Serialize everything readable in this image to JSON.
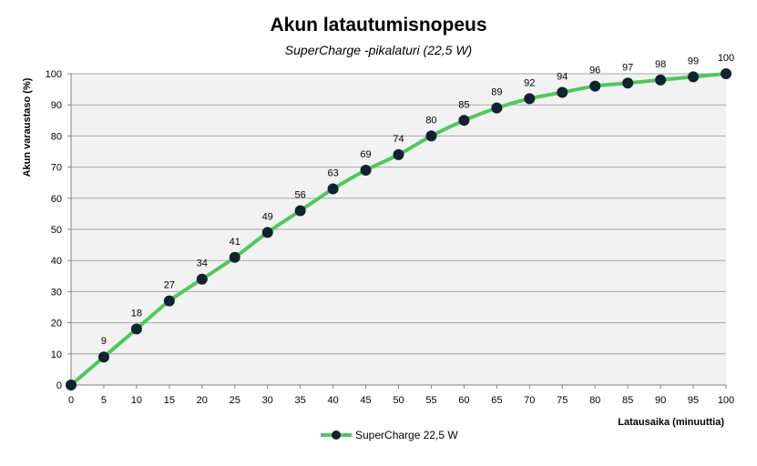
{
  "chart_data": {
    "type": "line",
    "title": "Akun latautumisnopeus",
    "subtitle": "SuperCharge  -pikalaturi  (22,5 W)",
    "xlabel": "Latausaika  (minuuttia)",
    "ylabel": "Akun  varaustaso   (%)",
    "xlim": [
      0,
      100
    ],
    "ylim": [
      0,
      100
    ],
    "x_ticks": [
      0,
      5,
      10,
      15,
      20,
      25,
      30,
      35,
      40,
      45,
      50,
      55,
      60,
      65,
      70,
      75,
      80,
      85,
      90,
      95,
      100
    ],
    "y_ticks": [
      0,
      10,
      20,
      30,
      40,
      50,
      60,
      70,
      80,
      90,
      100
    ],
    "grid": true,
    "legend_position": "bottom",
    "series": [
      {
        "name": "SuperCharge 22,5 W",
        "color": "#4ec95a",
        "marker_color": "#0f2330",
        "x": [
          0,
          5,
          10,
          15,
          20,
          25,
          30,
          35,
          40,
          45,
          50,
          55,
          60,
          65,
          70,
          75,
          80,
          85,
          90,
          95,
          100
        ],
        "values": [
          0,
          9,
          18,
          27,
          34,
          41,
          49,
          56,
          63,
          69,
          74,
          80,
          85,
          89,
          92,
          94,
          96,
          97,
          98,
          99,
          100
        ],
        "data_labels": [
          "",
          "9",
          "18",
          "27",
          "34",
          "41",
          "49",
          "56",
          "63",
          "69",
          "74",
          "80",
          "85",
          "89",
          "92",
          "94",
          "96",
          "97",
          "98",
          "99",
          "100"
        ]
      }
    ]
  }
}
